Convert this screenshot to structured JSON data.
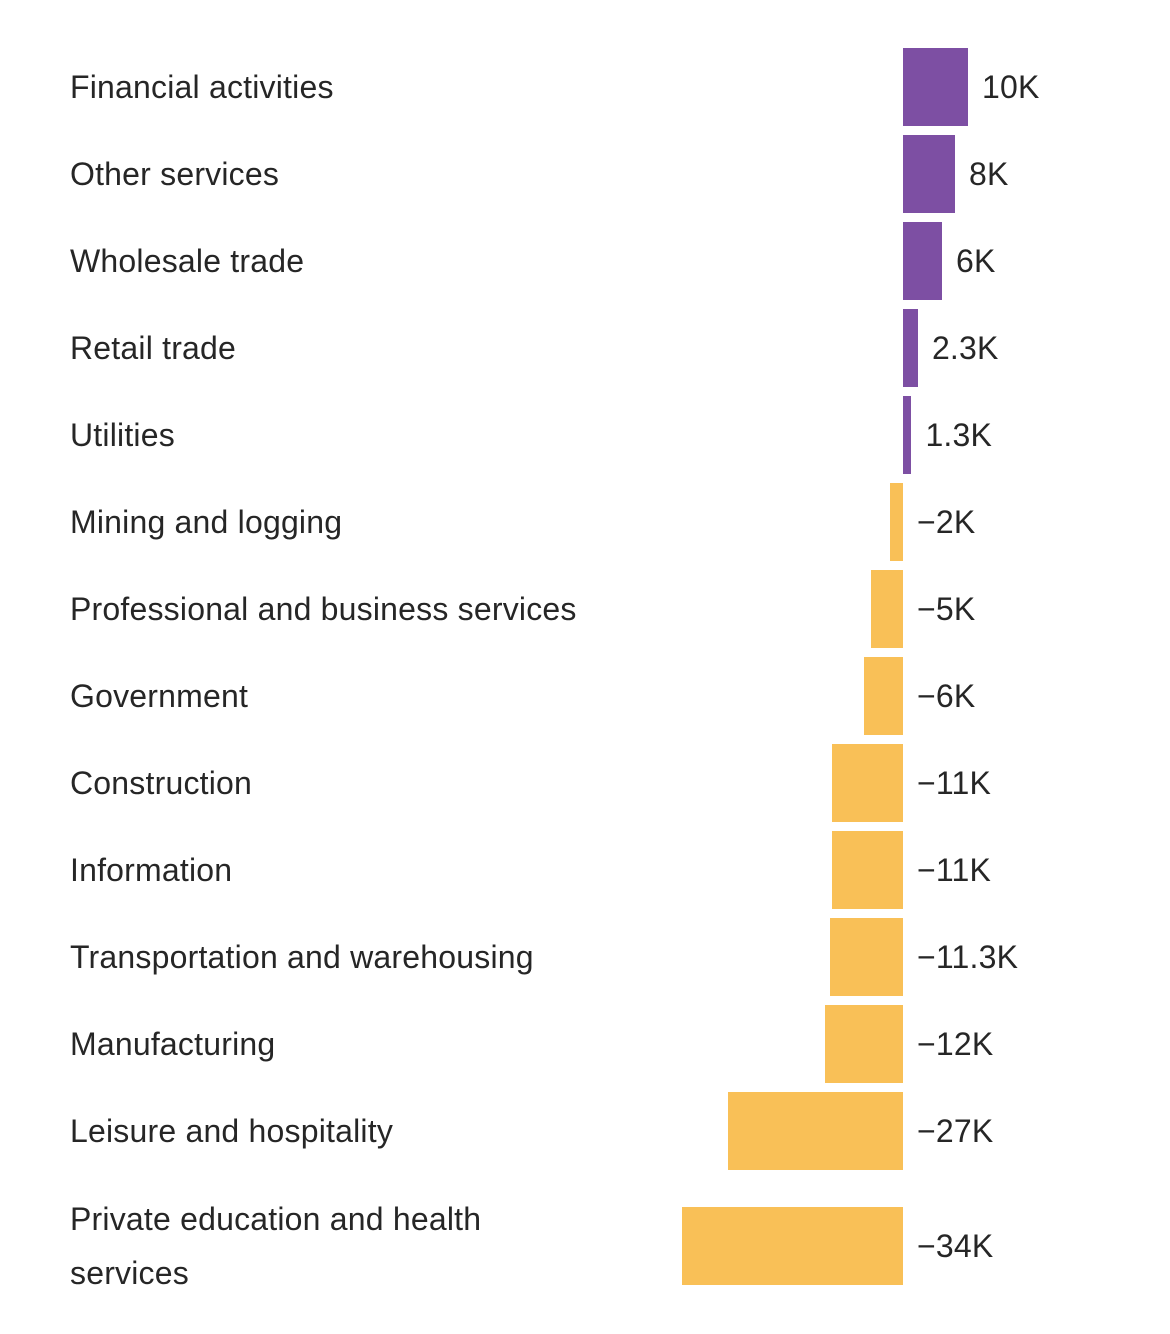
{
  "chart_data": {
    "type": "bar",
    "orientation": "horizontal",
    "title": "",
    "xlabel": "",
    "ylabel": "",
    "unit": "K",
    "xlim": [
      -34,
      10
    ],
    "grid": false,
    "legend": false,
    "categories": [
      "Financial activities",
      "Other services",
      "Wholesale trade",
      "Retail trade",
      "Utilities",
      "Mining and logging",
      "Professional and business services",
      "Government",
      "Construction",
      "Information",
      "Transportation and warehousing",
      "Manufacturing",
      "Leisure and hospitality",
      "Private education and health services"
    ],
    "values": [
      10,
      8,
      6,
      2.3,
      1.3,
      -2,
      -5,
      -6,
      -11,
      -11,
      -11.3,
      -12,
      -27,
      -34
    ],
    "value_labels": [
      "10K",
      "8K",
      "6K",
      "2.3K",
      "1.3K",
      "−2K",
      "−5K",
      "−6K",
      "−11K",
      "−11K",
      "−11.3K",
      "−12K",
      "−27K",
      "−34K"
    ],
    "positive_color": "#7d4fa3",
    "negative_color": "#f9c057",
    "text_color": "#262626",
    "background_color": "#ffffff"
  }
}
